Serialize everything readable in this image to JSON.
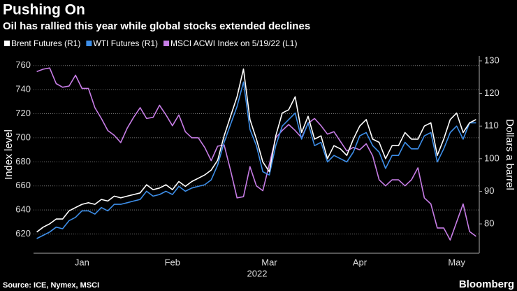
{
  "chart_data": {
    "type": "line",
    "title": "Pushing On",
    "subtitle": "Oil has rallied this year while global stocks extended declines",
    "source": "Source: ICE, Nymex, MSCI",
    "logo": "Bloomberg",
    "x_label": "2022",
    "y_label": "Index level",
    "y2_label": "Dollars a barrel",
    "categories": [
      null,
      null,
      null,
      null,
      null,
      null,
      null,
      "Jan",
      null,
      null,
      null,
      null,
      null,
      null,
      null,
      null,
      null,
      null,
      null,
      null,
      null,
      "Feb",
      null,
      null,
      null,
      null,
      null,
      null,
      null,
      null,
      null,
      null,
      null,
      null,
      null,
      null,
      "Mar",
      null,
      null,
      null,
      null,
      null,
      null,
      null,
      null,
      null,
      null,
      null,
      null,
      null,
      "Apr",
      null,
      null,
      null,
      null,
      null,
      null,
      null,
      null,
      null,
      null,
      null,
      null,
      null,
      null,
      "May",
      null,
      null,
      null
    ],
    "ylim": [
      604,
      768
    ],
    "yticks": [
      620,
      640,
      660,
      680,
      700,
      720,
      740,
      760
    ],
    "y2lim": [
      71,
      131.5
    ],
    "y2ticks": [
      80,
      90,
      100,
      110,
      120,
      130
    ],
    "grid": true,
    "series": [
      {
        "name": "Brent Futures (R1)",
        "color": "#ffffff",
        "axis": "y2",
        "values": [
          77.5,
          79,
          80,
          81.5,
          81.5,
          84,
          85,
          86,
          86.5,
          86,
          87.5,
          87,
          88.5,
          88,
          88.5,
          89,
          89.5,
          92,
          90.5,
          91,
          92,
          90.5,
          93,
          91.5,
          93,
          94,
          95,
          96.5,
          99.5,
          107,
          113,
          119,
          127.5,
          112,
          106,
          99,
          96,
          107,
          114,
          115,
          119,
          108,
          113,
          106,
          107,
          100,
          104,
          103,
          101,
          106,
          110,
          112,
          106,
          105,
          100,
          104,
          104,
          108,
          106,
          106,
          110,
          111,
          101,
          106,
          112,
          114,
          108,
          111,
          112
        ]
      },
      {
        "name": "WTI Futures (R1)",
        "color": "#3d8ee8",
        "axis": "y2",
        "values": [
          75.5,
          76.5,
          77.5,
          79,
          78.5,
          81,
          82,
          84,
          84,
          83,
          85,
          84,
          86,
          86,
          86.5,
          87,
          87.5,
          90,
          88.5,
          89,
          90,
          89,
          91.5,
          90,
          91,
          91.5,
          92,
          93.5,
          98,
          105,
          110.5,
          116,
          123.5,
          109,
          104,
          96,
          95,
          104,
          110,
          112,
          114,
          106,
          111,
          104,
          105,
          99,
          101,
          100,
          99,
          102,
          107,
          108,
          104,
          102,
          97,
          101,
          101,
          105,
          103,
          103,
          107,
          108,
          99,
          103,
          108,
          110,
          106,
          111,
          111
        ]
      },
      {
        "name": "MSCI ACWI Index on 5/19/22 (L1)",
        "color": "#c77de6",
        "axis": "y",
        "values": [
          755,
          757,
          758,
          745,
          742,
          743,
          752,
          741,
          741,
          725,
          716,
          706,
          702,
          696,
          708,
          717,
          725,
          716,
          717,
          727,
          719,
          710,
          719,
          705,
          700,
          700,
          692,
          681,
          693,
          694,
          673,
          650,
          651,
          676,
          660,
          656,
          678,
          700,
          706,
          711,
          706,
          700,
          712,
          716,
          710,
          703,
          705,
          697,
          689,
          692,
          690,
          695,
          685,
          665,
          660,
          665,
          665,
          660,
          665,
          675,
          650,
          645,
          625,
          625,
          615,
          630,
          645,
          622,
          618
        ]
      }
    ]
  }
}
